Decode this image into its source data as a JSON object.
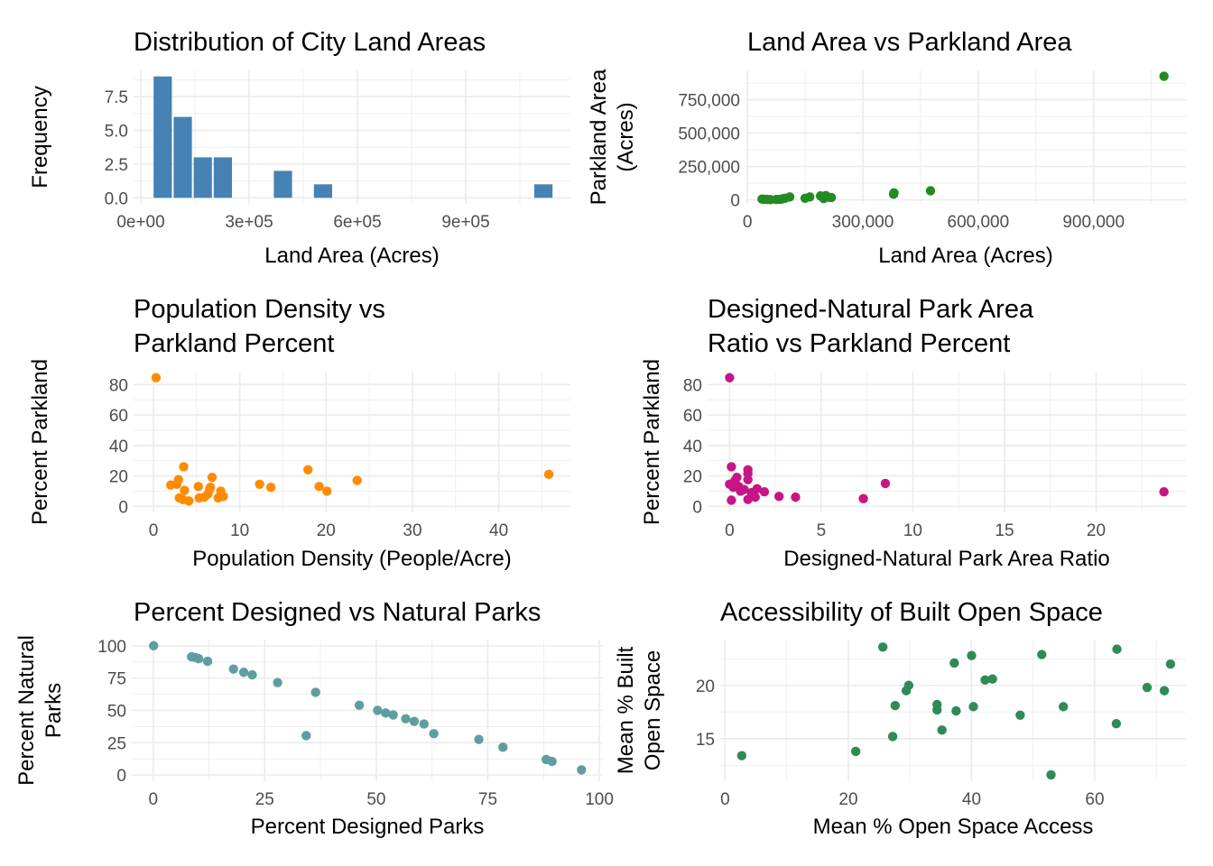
{
  "figure": {
    "background": "#ffffff",
    "grid_color": "#ebebeb"
  },
  "chart_data": [
    {
      "id": "hist",
      "type": "bar",
      "subtype": "histogram",
      "title": [
        "Distribution of City Land Areas"
      ],
      "xlabel": "Land Area (Acres)",
      "ylabel": [
        "Frequency"
      ],
      "color": "#4682B4",
      "xlim": [
        -20000,
        1190000
      ],
      "ylim": [
        -0.45,
        9.45
      ],
      "xticks": [
        0,
        300000,
        600000,
        900000
      ],
      "xtick_labels": [
        "0e+00",
        "3e+05",
        "6e+05",
        "9e+05"
      ],
      "yticks": [
        0,
        2.5,
        5,
        7.5
      ],
      "ytick_labels": [
        "0.0",
        "2.5",
        "5.0",
        "7.5"
      ],
      "bin_start": 33000,
      "bin_width": 55500,
      "counts": [
        9,
        6,
        3,
        3,
        0,
        0,
        2,
        0,
        1,
        0,
        0,
        0,
        0,
        0,
        0,
        0,
        0,
        0,
        0,
        1
      ]
    },
    {
      "id": "land-vs-park",
      "type": "scatter",
      "title": [
        "Land Area vs Parkland Area"
      ],
      "xlabel": "Land Area (Acres)",
      "ylabel": [
        "Parkland Area",
        "(Acres)"
      ],
      "color": "#228B22",
      "xlim": [
        -5000,
        1140000
      ],
      "ylim": [
        -30000,
        970000
      ],
      "xticks": [
        0,
        300000,
        600000,
        900000
      ],
      "xtick_labels": [
        "0",
        "300,000",
        "600,000",
        "900,000"
      ],
      "yticks": [
        0,
        250000,
        500000,
        750000
      ],
      "ytick_labels": [
        "0",
        "250,000",
        "500,000",
        "750,000"
      ],
      "points": [
        [
          38000,
          6000
        ],
        [
          45000,
          4000
        ],
        [
          52000,
          3000
        ],
        [
          60000,
          2000
        ],
        [
          75000,
          3000
        ],
        [
          85000,
          4000
        ],
        [
          92000,
          8000
        ],
        [
          98000,
          12000
        ],
        [
          110000,
          22000
        ],
        [
          150000,
          12000
        ],
        [
          162000,
          22000
        ],
        [
          190000,
          30000
        ],
        [
          198000,
          10000
        ],
        [
          204000,
          32000
        ],
        [
          210000,
          20000
        ],
        [
          218000,
          18000
        ],
        [
          380000,
          42000
        ],
        [
          381000,
          52000
        ],
        [
          476000,
          68000
        ],
        [
          1083000,
          926000
        ]
      ]
    },
    {
      "id": "density-vs-parkland",
      "type": "scatter",
      "title": [
        "Population Density vs",
        "Parkland Percent"
      ],
      "xlabel": "Population Density (People/Acre)",
      "ylabel": [
        "Percent Parkland"
      ],
      "color": "#FF8C00",
      "xlim": [
        -2.3,
        48.3
      ],
      "ylim": [
        -4,
        88.5
      ],
      "xticks": [
        0,
        10,
        20,
        30,
        40
      ],
      "xtick_labels": [
        "0",
        "10",
        "20",
        "30",
        "40"
      ],
      "yticks": [
        0,
        20,
        40,
        60,
        80
      ],
      "ytick_labels": [
        "0",
        "20",
        "40",
        "60",
        "80"
      ],
      "points": [
        [
          0.3,
          84.5
        ],
        [
          2.0,
          14
        ],
        [
          2.7,
          14.5
        ],
        [
          2.9,
          17.5
        ],
        [
          3.5,
          26
        ],
        [
          3.6,
          10.5
        ],
        [
          3.0,
          5.5
        ],
        [
          3.4,
          4.5
        ],
        [
          4.1,
          3.5
        ],
        [
          5.2,
          13
        ],
        [
          5.3,
          5.5
        ],
        [
          5.9,
          6
        ],
        [
          6.3,
          8
        ],
        [
          6.5,
          11
        ],
        [
          6.6,
          12.5
        ],
        [
          6.8,
          19
        ],
        [
          7.5,
          5.5
        ],
        [
          7.8,
          10
        ],
        [
          7.9,
          6.5
        ],
        [
          8.1,
          6.5
        ],
        [
          12.3,
          14.5
        ],
        [
          13.6,
          12.5
        ],
        [
          17.9,
          24
        ],
        [
          19.2,
          13
        ],
        [
          20.1,
          10
        ],
        [
          23.6,
          17
        ],
        [
          45.8,
          21
        ]
      ]
    },
    {
      "id": "ratio-vs-parkland",
      "type": "scatter",
      "title": [
        "Designed-Natural Park Area",
        "Ratio vs Parkland Percent"
      ],
      "xlabel": "Designed-Natural Park Area Ratio",
      "ylabel": [
        "Percent Parkland"
      ],
      "color": "#C71585",
      "xlim": [
        -1.2,
        24.9
      ],
      "ylim": [
        -4,
        88.5
      ],
      "xticks": [
        0,
        5,
        10,
        15,
        20
      ],
      "xtick_labels": [
        "0",
        "5",
        "10",
        "15",
        "20"
      ],
      "yticks": [
        0,
        20,
        40,
        60,
        80
      ],
      "ytick_labels": [
        "0",
        "20",
        "40",
        "60",
        "80"
      ],
      "points": [
        [
          0.0,
          84.5
        ],
        [
          0.1,
          26
        ],
        [
          0.1,
          4
        ],
        [
          0.0,
          14.5
        ],
        [
          0.2,
          12.5
        ],
        [
          0.3,
          17
        ],
        [
          0.4,
          19
        ],
        [
          0.5,
          13
        ],
        [
          0.6,
          10
        ],
        [
          0.8,
          11
        ],
        [
          1.0,
          24
        ],
        [
          1.0,
          21.5
        ],
        [
          1.0,
          17.5
        ],
        [
          1.0,
          4.5
        ],
        [
          1.2,
          9
        ],
        [
          1.4,
          6
        ],
        [
          1.5,
          11.5
        ],
        [
          1.9,
          9.5
        ],
        [
          2.7,
          6.5
        ],
        [
          3.6,
          6
        ],
        [
          7.3,
          5
        ],
        [
          8.5,
          15
        ],
        [
          23.7,
          9.5
        ]
      ]
    },
    {
      "id": "designed-vs-natural",
      "type": "scatter",
      "title": [
        "Percent Designed vs Natural Parks"
      ],
      "xlabel": "Percent Designed Parks",
      "ylabel": [
        "Percent Natural",
        "Parks"
      ],
      "color": "#5F9EA0",
      "xlim": [
        -4.8,
        100.8
      ],
      "ylim": [
        -4.8,
        104.8
      ],
      "xticks": [
        0,
        25,
        50,
        75,
        100
      ],
      "xtick_labels": [
        "0",
        "25",
        "50",
        "75",
        "100"
      ],
      "yticks": [
        0,
        25,
        50,
        75,
        100
      ],
      "ytick_labels": [
        "0",
        "25",
        "50",
        "75",
        "100"
      ],
      "points": [
        [
          0.1,
          100
        ],
        [
          8.6,
          91.5
        ],
        [
          9.4,
          91
        ],
        [
          10.2,
          90
        ],
        [
          12.2,
          88
        ],
        [
          18.0,
          82
        ],
        [
          20.3,
          79.5
        ],
        [
          22.2,
          77.5
        ],
        [
          27.9,
          71.5
        ],
        [
          34.3,
          30.5
        ],
        [
          36.4,
          64
        ],
        [
          46.2,
          54
        ],
        [
          50.3,
          50
        ],
        [
          52.1,
          48
        ],
        [
          53.8,
          46.5
        ],
        [
          56.6,
          43.5
        ],
        [
          58.5,
          41.5
        ],
        [
          60.7,
          39.5
        ],
        [
          62.9,
          32
        ],
        [
          73.0,
          27.5
        ],
        [
          78.4,
          21.5
        ],
        [
          88.1,
          12
        ],
        [
          89.4,
          10.5
        ],
        [
          96.0,
          4
        ]
      ]
    },
    {
      "id": "accessibility",
      "type": "scatter",
      "title": [
        "Accessibility of Built Open Space"
      ],
      "xlabel": "Mean % Open Space Access",
      "ylabel": [
        "Mean % Built",
        "Open Space"
      ],
      "color": "#2E8B57",
      "xlim": [
        -0.8,
        74.8
      ],
      "ylim": [
        11.0,
        24.3
      ],
      "xticks": [
        0,
        20,
        40,
        60
      ],
      "xtick_labels": [
        "0",
        "20",
        "40",
        "60"
      ],
      "yticks": [
        15,
        20
      ],
      "ytick_labels": [
        "15",
        "20"
      ],
      "points": [
        [
          2.7,
          13.4
        ],
        [
          21.2,
          13.8
        ],
        [
          25.6,
          23.6
        ],
        [
          27.2,
          15.2
        ],
        [
          27.6,
          18.1
        ],
        [
          29.4,
          19.5
        ],
        [
          29.8,
          20
        ],
        [
          34.4,
          18.2
        ],
        [
          34.4,
          17.7
        ],
        [
          35.2,
          15.8
        ],
        [
          37.2,
          22.1
        ],
        [
          37.5,
          17.6
        ],
        [
          40.0,
          22.8
        ],
        [
          40.3,
          18
        ],
        [
          42.2,
          20.5
        ],
        [
          43.4,
          20.6
        ],
        [
          47.9,
          17.2
        ],
        [
          51.4,
          22.9
        ],
        [
          52.9,
          11.6
        ],
        [
          54.9,
          18
        ],
        [
          63.5,
          16.4
        ],
        [
          63.6,
          23.4
        ],
        [
          68.5,
          19.8
        ],
        [
          71.3,
          19.5
        ],
        [
          72.3,
          22
        ]
      ]
    }
  ]
}
